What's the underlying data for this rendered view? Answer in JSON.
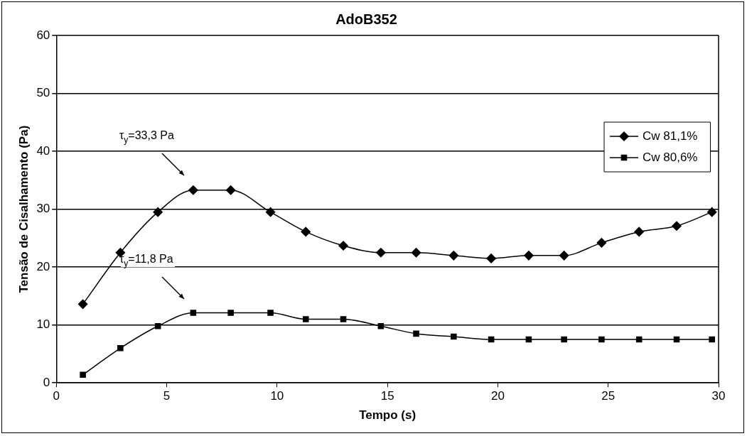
{
  "chart_data": {
    "type": "line",
    "title": "AdoB352",
    "xlabel": "Tempo (s)",
    "ylabel": "Tensão de Cisalhamento (Pa)",
    "xlim": [
      0,
      30
    ],
    "xticks": [
      0,
      5,
      10,
      15,
      20,
      25,
      30
    ],
    "ylim": [
      0,
      60
    ],
    "yticks": [
      0,
      10,
      20,
      30,
      40,
      50,
      60
    ],
    "x": [
      1.2,
      2.9,
      4.6,
      6.2,
      7.9,
      9.7,
      11.3,
      13.0,
      14.7,
      16.3,
      18.0,
      19.7,
      21.4,
      23.0,
      24.7,
      26.4,
      28.1,
      29.7
    ],
    "series": [
      {
        "name": "Cw 81,1%",
        "color": "#000000",
        "marker": "diamond",
        "values": [
          13.6,
          22.5,
          29.5,
          33.3,
          33.3,
          29.5,
          26.1,
          23.7,
          22.5,
          22.5,
          22.0,
          21.5,
          22.0,
          22.0,
          24.2,
          26.1,
          27.1,
          29.5
        ]
      },
      {
        "name": "Cw 80,6%",
        "color": "#000000",
        "marker": "square",
        "values": [
          1.4,
          6.0,
          9.8,
          12.1,
          12.1,
          12.1,
          11.0,
          11.0,
          9.8,
          8.5,
          8.0,
          7.5,
          7.5,
          7.5,
          7.5,
          7.5,
          7.5,
          7.5
        ]
      }
    ],
    "annotations": [
      "τ$_{y}$=33,3 Pa",
      "τ$_{y}$=11,8 Pa"
    ],
    "grid": "y",
    "legend": "right",
    "line_style": "solid"
  }
}
